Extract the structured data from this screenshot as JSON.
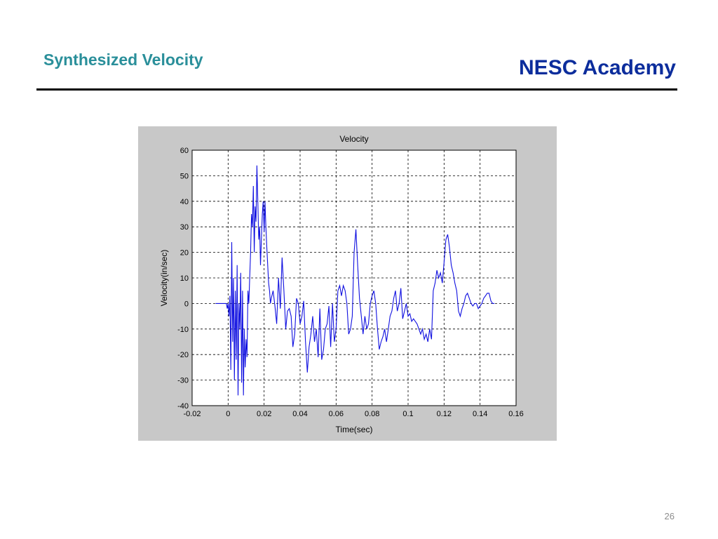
{
  "slide": {
    "title": "Synthesized Velocity",
    "brand": "NESC Academy",
    "page_number": "26"
  },
  "chart_data": {
    "type": "line",
    "title": "Velocity",
    "xlabel": "Time(sec)",
    "ylabel": "Velocity(in/sec)",
    "xlim": [
      -0.02,
      0.16
    ],
    "ylim": [
      -40,
      60
    ],
    "xticks": [
      "-0.02",
      "0",
      "0.02",
      "0.04",
      "0.06",
      "0.08",
      "0.1",
      "0.12",
      "0.14",
      "0.16"
    ],
    "yticks": [
      "60",
      "50",
      "40",
      "30",
      "20",
      "10",
      "0",
      "-10",
      "-20",
      "-30",
      "-40"
    ],
    "grid": true,
    "colors": {
      "line": "#1010e0",
      "plot_bg": "#ffffff",
      "figure_bg": "#c8c8c8"
    },
    "series": [
      {
        "x": [
          -0.007,
          -0.001,
          -0.0005,
          0.0,
          0.0005,
          0.001,
          0.0015,
          0.002,
          0.0025,
          0.003,
          0.0035,
          0.004,
          0.0045,
          0.005,
          0.0055,
          0.006,
          0.0065,
          0.007,
          0.0075,
          0.008,
          0.0085,
          0.009,
          0.0095,
          0.01,
          0.0105,
          0.011,
          0.0115,
          0.012,
          0.0125,
          0.013,
          0.0135,
          0.014,
          0.0145,
          0.015,
          0.0155,
          0.016,
          0.0165,
          0.017,
          0.0175,
          0.018,
          0.0185,
          0.019,
          0.0195,
          0.02,
          0.0205,
          0.021,
          0.0215,
          0.022,
          0.0225,
          0.023,
          0.0235,
          0.024,
          0.025,
          0.026,
          0.027,
          0.028,
          0.029,
          0.03,
          0.031,
          0.032,
          0.033,
          0.034,
          0.035,
          0.036,
          0.037,
          0.038,
          0.039,
          0.04,
          0.041,
          0.042,
          0.043,
          0.044,
          0.045,
          0.046,
          0.047,
          0.048,
          0.049,
          0.05,
          0.051,
          0.052,
          0.053,
          0.054,
          0.055,
          0.056,
          0.057,
          0.058,
          0.059,
          0.06,
          0.061,
          0.062,
          0.063,
          0.064,
          0.065,
          0.066,
          0.067,
          0.068,
          0.069,
          0.07,
          0.071,
          0.072,
          0.073,
          0.074,
          0.075,
          0.076,
          0.077,
          0.078,
          0.079,
          0.08,
          0.081,
          0.082,
          0.083,
          0.084,
          0.085,
          0.086,
          0.087,
          0.088,
          0.089,
          0.09,
          0.091,
          0.092,
          0.093,
          0.094,
          0.095,
          0.096,
          0.097,
          0.098,
          0.099,
          0.1,
          0.101,
          0.102,
          0.103,
          0.104,
          0.105,
          0.106,
          0.107,
          0.108,
          0.109,
          0.11,
          0.111,
          0.112,
          0.113,
          0.114,
          0.115,
          0.116,
          0.117,
          0.118,
          0.119,
          0.12,
          0.121,
          0.122,
          0.123,
          0.124,
          0.125,
          0.126,
          0.127,
          0.128,
          0.129,
          0.13,
          0.131,
          0.132,
          0.133,
          0.134,
          0.135,
          0.136,
          0.137,
          0.138,
          0.139,
          0.14,
          0.141,
          0.142,
          0.143,
          0.144,
          0.145,
          0.146,
          0.147,
          0.148
        ],
        "y": [
          0,
          0,
          -2,
          0,
          -5,
          3,
          -26,
          24,
          -15,
          10,
          -30,
          5,
          -22,
          15,
          -36,
          0,
          -10,
          12,
          -31,
          5,
          -36,
          -10,
          -25,
          -14,
          -21,
          5,
          0,
          10,
          20,
          35,
          30,
          46,
          20,
          38,
          32,
          54,
          40,
          25,
          30,
          15,
          25,
          35,
          40,
          28,
          40,
          30,
          22,
          15,
          8,
          5,
          0,
          2,
          5,
          -1,
          -8,
          10,
          -2,
          18,
          5,
          -10,
          -3,
          -2,
          -5,
          -17,
          -12,
          2,
          0,
          -8,
          -5,
          1,
          -15,
          -27,
          -17,
          -12,
          -5,
          -15,
          -10,
          -21,
          -2,
          -22,
          -18,
          -10,
          -8,
          -1,
          -17,
          0,
          -15,
          -10,
          5,
          7,
          3,
          7,
          5,
          0,
          -12,
          -10,
          -5,
          20,
          29,
          15,
          2,
          -5,
          -12,
          -5,
          -10,
          -8,
          0,
          3,
          5,
          0,
          -10,
          -18,
          -15,
          -13,
          -10,
          -15,
          -10,
          -5,
          -3,
          2,
          5,
          -3,
          0,
          6,
          -6,
          -3,
          0,
          -5,
          -4,
          -7,
          -6,
          -7,
          -8,
          -10,
          -12,
          -10,
          -14,
          -12,
          -15,
          -10,
          -14,
          5,
          8,
          13,
          10,
          12,
          8,
          16,
          25,
          27,
          22,
          15,
          12,
          8,
          5,
          -3,
          -5,
          -2,
          0,
          3,
          4,
          2,
          0,
          -1,
          0,
          0,
          -2,
          -1,
          0,
          2,
          3,
          4,
          4,
          1,
          0,
          0
        ]
      }
    ]
  }
}
